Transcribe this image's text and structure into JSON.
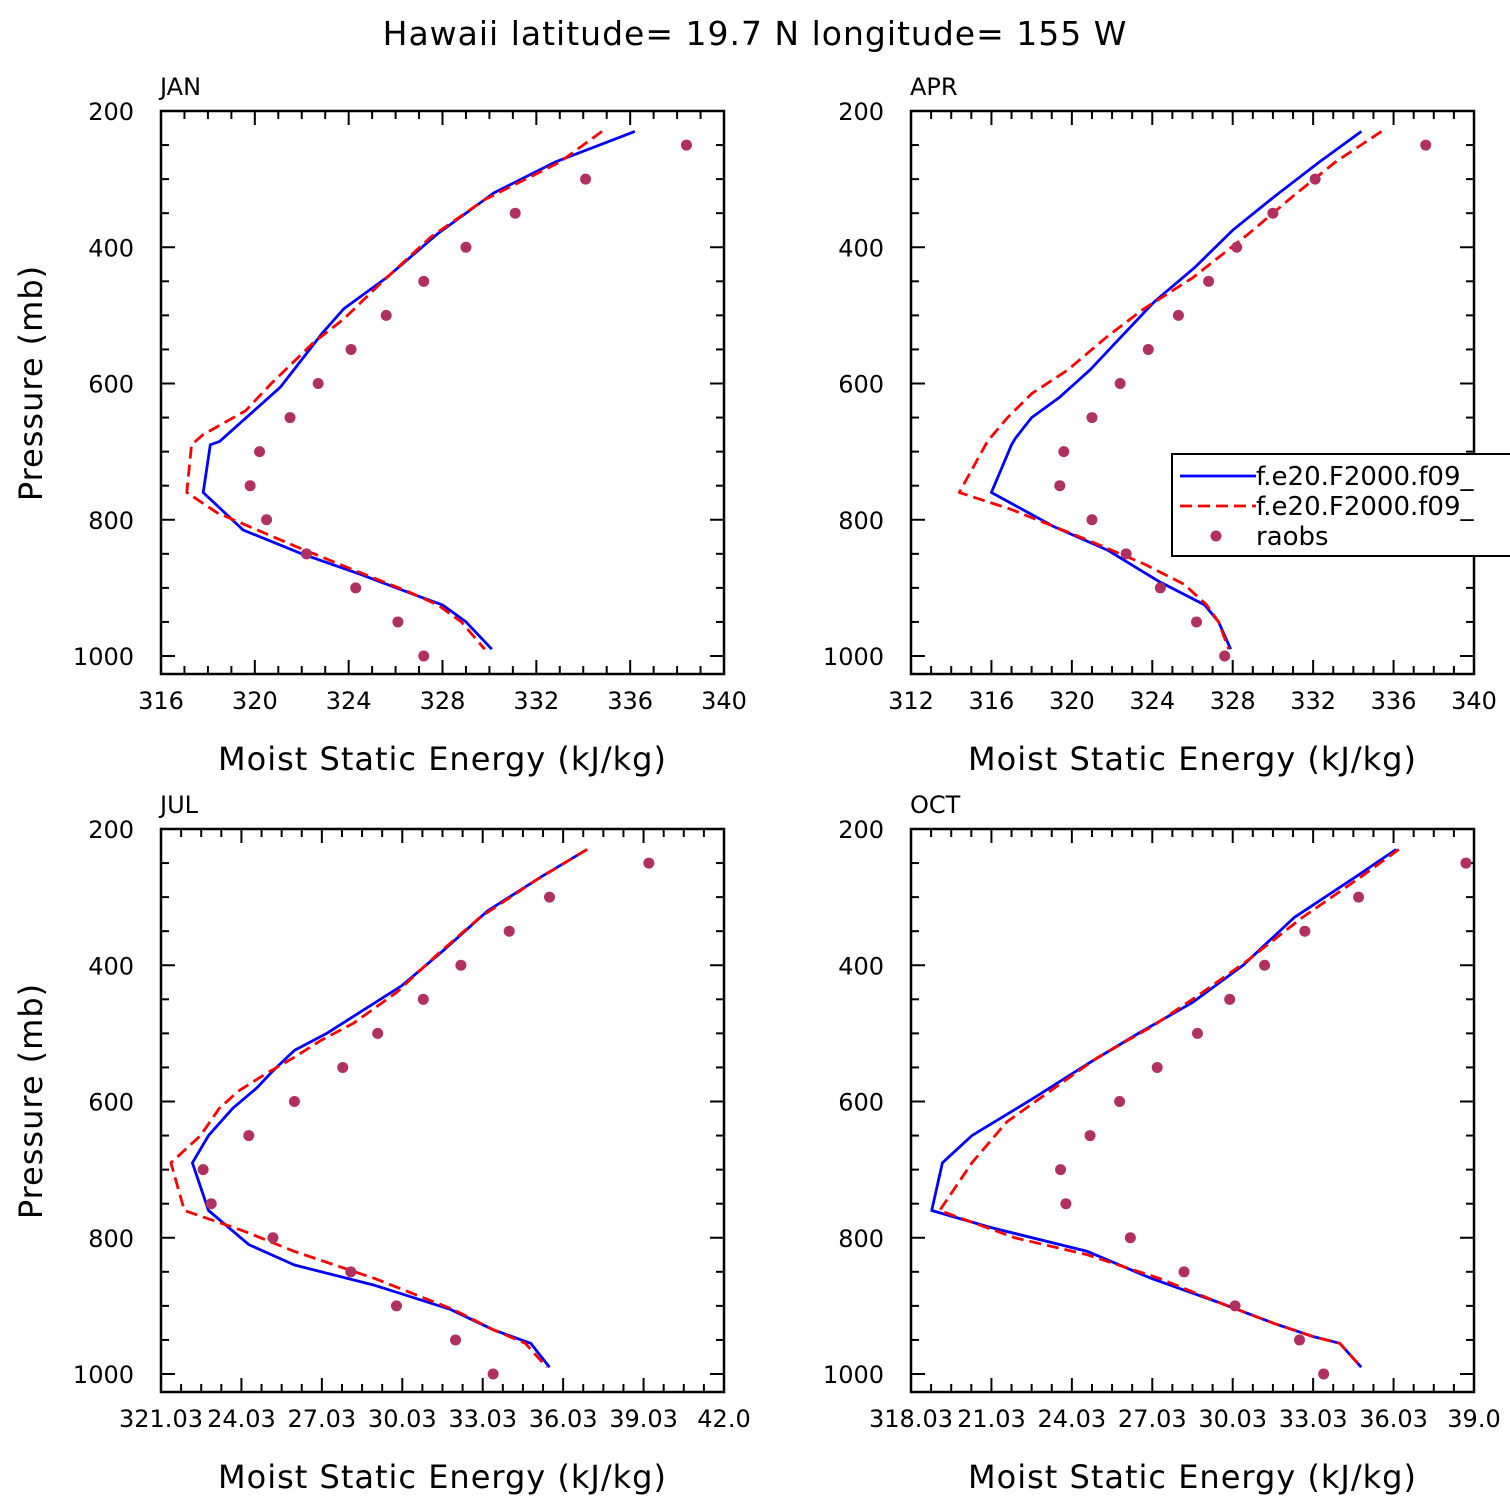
{
  "figure_title": "Hawaii  latitude= 19.7 N longitude= 155 W",
  "legend": [
    {
      "label": "f.e20.F2000.f09_",
      "color": "#0000ff",
      "style": "solid"
    },
    {
      "label": "f.e20.F2000.f09_",
      "color": "#ff0000",
      "style": "dashed"
    },
    {
      "label": "raobs",
      "color": "#b03060",
      "style": "dot"
    }
  ],
  "chart_data": [
    {
      "type": "line",
      "title": "JAN",
      "xlabel": "Moist Static Energy (kJ/kg)",
      "ylabel": "Pressure (mb)",
      "xlim": [
        316,
        340
      ],
      "ylim": [
        1000,
        200
      ],
      "xticks": [
        "316",
        "320",
        "324",
        "328",
        "332",
        "336",
        "340"
      ],
      "yticks": [
        "200",
        "400",
        "600",
        "800",
        "1000"
      ],
      "series": [
        {
          "color": "#0000ff",
          "style": "solid",
          "x": [
            336.2,
            332.8,
            330.2,
            327.8,
            325.6,
            323.8,
            322.9,
            321.1,
            319.8,
            318.5,
            318.1,
            317.8,
            319.5,
            322.0,
            324.5,
            326.8,
            328.0,
            329.0,
            330.1
          ],
          "y": [
            230,
            275,
            320,
            380,
            445,
            490,
            525,
            605,
            645,
            685,
            690,
            760,
            815,
            850,
            880,
            910,
            925,
            950,
            990
          ]
        },
        {
          "color": "#ff0000",
          "style": "dashed",
          "x": [
            334.8,
            333.0,
            329.8,
            327.5,
            325.3,
            323.8,
            322.5,
            320.7,
            319.6,
            317.8,
            317.3,
            317.1,
            318.4,
            321.8,
            324.3,
            326.5,
            327.8,
            328.8,
            329.8
          ],
          "y": [
            230,
            275,
            330,
            385,
            455,
            505,
            540,
            600,
            640,
            675,
            690,
            760,
            790,
            840,
            875,
            905,
            925,
            950,
            990
          ]
        },
        {
          "color": "#b03060",
          "style": "dot",
          "x": [
            338.4,
            334.1,
            331.1,
            329.0,
            327.2,
            325.6,
            324.1,
            322.7,
            321.5,
            320.2,
            319.8,
            320.5,
            322.2,
            324.3,
            326.1,
            327.2
          ],
          "y": [
            250,
            300,
            350,
            400,
            450,
            500,
            550,
            600,
            650,
            700,
            750,
            800,
            850,
            900,
            950,
            1000
          ]
        }
      ]
    },
    {
      "type": "line",
      "title": "APR",
      "xlabel": "Moist Static Energy (kJ/kg)",
      "ylabel": "",
      "xlim": [
        312,
        340
      ],
      "ylim": [
        1000,
        200
      ],
      "xticks": [
        "312",
        "316",
        "320",
        "324",
        "328",
        "332",
        "336",
        "340"
      ],
      "yticks": [
        "200",
        "400",
        "600",
        "800",
        "1000"
      ],
      "series": [
        {
          "color": "#0000ff",
          "style": "solid",
          "x": [
            334.4,
            332.3,
            330.1,
            328.0,
            326.1,
            324.1,
            322.5,
            320.9,
            319.4,
            318.0,
            317.2,
            317.0,
            316.0,
            319.1,
            321.8,
            324.3,
            326.6,
            327.3,
            327.9
          ],
          "y": [
            230,
            275,
            325,
            375,
            430,
            480,
            530,
            580,
            620,
            650,
            680,
            690,
            760,
            810,
            845,
            890,
            925,
            950,
            990
          ]
        },
        {
          "color": "#ff0000",
          "style": "dashed",
          "x": [
            335.4,
            333.1,
            331.0,
            328.8,
            326.0,
            323.6,
            321.8,
            319.8,
            318.0,
            316.8,
            315.8,
            314.4,
            317.0,
            320.8,
            323.6,
            325.6,
            326.7,
            327.3,
            327.8
          ],
          "y": [
            230,
            275,
            325,
            380,
            445,
            490,
            530,
            580,
            615,
            650,
            685,
            760,
            785,
            830,
            865,
            895,
            925,
            950,
            990
          ]
        },
        {
          "color": "#b03060",
          "style": "dot",
          "x": [
            337.6,
            332.1,
            330.0,
            328.2,
            326.8,
            325.3,
            323.8,
            322.4,
            321.0,
            319.6,
            319.4,
            321.0,
            322.7,
            324.4,
            326.2,
            327.6
          ],
          "y": [
            250,
            300,
            350,
            400,
            450,
            500,
            550,
            600,
            650,
            700,
            750,
            800,
            850,
            900,
            950,
            1000
          ]
        }
      ]
    },
    {
      "type": "line",
      "title": "JUL",
      "xlabel": "Moist Static Energy (kJ/kg)",
      "ylabel": "Pressure (mb)",
      "xlim": [
        321.03,
        342.0
      ],
      "ylim": [
        1000,
        200
      ],
      "xticks": [
        "321.03",
        "24.03",
        "27.03",
        "30.03",
        "33.03",
        "36.03",
        "39.03",
        "42.0"
      ],
      "yticks": [
        "200",
        "400",
        "600",
        "800",
        "1000"
      ],
      "series": [
        {
          "color": "#0000ff",
          "style": "solid",
          "x": [
            336.9,
            335.2,
            333.2,
            331.5,
            330.0,
            328.4,
            327.2,
            326.0,
            325.2,
            324.6,
            323.7,
            322.8,
            322.2,
            322.8,
            324.3,
            326.0,
            329.0,
            331.8,
            333.4,
            334.8,
            335.5
          ],
          "y": [
            230,
            270,
            320,
            380,
            430,
            470,
            500,
            525,
            555,
            580,
            610,
            650,
            690,
            760,
            810,
            840,
            870,
            905,
            935,
            955,
            990
          ]
        },
        {
          "color": "#ff0000",
          "style": "dashed",
          "x": [
            336.9,
            335.0,
            332.9,
            331.3,
            329.8,
            328.2,
            327.0,
            326.0,
            324.9,
            323.9,
            323.2,
            322.5,
            321.4,
            321.9,
            324.1,
            326.0,
            329.0,
            331.9,
            333.4,
            334.6,
            335.4
          ],
          "y": [
            230,
            275,
            330,
            385,
            440,
            485,
            510,
            535,
            560,
            585,
            610,
            650,
            690,
            760,
            790,
            820,
            860,
            905,
            935,
            955,
            990
          ]
        },
        {
          "color": "#b03060",
          "style": "dot",
          "x": [
            339.2,
            335.5,
            334.0,
            332.2,
            330.8,
            329.1,
            327.8,
            326.0,
            324.3,
            322.6,
            322.9,
            325.2,
            328.1,
            329.8,
            332.0,
            333.4
          ],
          "y": [
            250,
            300,
            350,
            400,
            450,
            500,
            550,
            600,
            650,
            700,
            750,
            800,
            850,
            900,
            950,
            1000
          ]
        }
      ]
    },
    {
      "type": "line",
      "title": "OCT",
      "xlabel": "Moist Static Energy (kJ/kg)",
      "ylabel": "",
      "xlim": [
        318.03,
        339.0
      ],
      "ylim": [
        1000,
        200
      ],
      "xticks": [
        "318.03",
        "21.03",
        "24.03",
        "27.03",
        "30.03",
        "33.03",
        "36.03",
        "39.0"
      ],
      "yticks": [
        "200",
        "400",
        "600",
        "800",
        "1000"
      ],
      "series": [
        {
          "color": "#0000ff",
          "style": "solid",
          "x": [
            336.1,
            334.6,
            332.3,
            330.4,
            328.5,
            326.5,
            324.6,
            322.6,
            320.3,
            319.2,
            318.8,
            321.0,
            324.6,
            327.0,
            329.5,
            331.5,
            333.0,
            334.0,
            334.8
          ],
          "y": [
            230,
            270,
            330,
            400,
            455,
            500,
            545,
            595,
            650,
            690,
            760,
            785,
            820,
            860,
            895,
            925,
            945,
            955,
            990
          ]
        },
        {
          "color": "#ff0000",
          "style": "dashed",
          "x": [
            336.2,
            334.8,
            332.6,
            330.5,
            328.7,
            327.0,
            325.0,
            323.2,
            321.6,
            320.3,
            319.1,
            321.9,
            324.6,
            327.3,
            329.5,
            331.5,
            333.0,
            334.0,
            334.8
          ],
          "y": [
            230,
            270,
            330,
            395,
            445,
            490,
            535,
            585,
            630,
            690,
            760,
            800,
            825,
            860,
            895,
            925,
            945,
            955,
            990
          ]
        },
        {
          "color": "#b03060",
          "style": "dot",
          "x": [
            338.7,
            334.7,
            332.7,
            331.2,
            329.9,
            328.7,
            327.2,
            325.8,
            324.7,
            323.6,
            323.8,
            326.2,
            328.2,
            330.1,
            332.5,
            333.4
          ],
          "y": [
            250,
            300,
            350,
            400,
            450,
            500,
            550,
            600,
            650,
            700,
            750,
            800,
            850,
            900,
            950,
            1000
          ]
        }
      ]
    }
  ]
}
